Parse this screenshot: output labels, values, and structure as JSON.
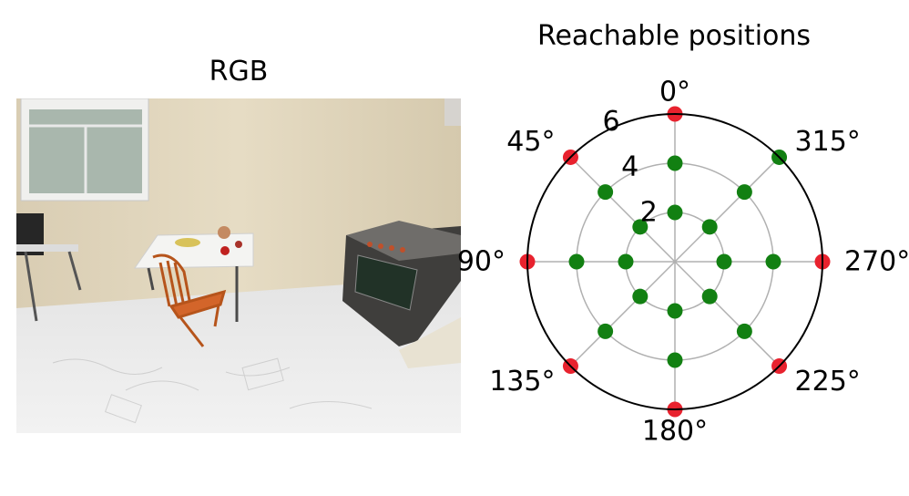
{
  "panels": {
    "rgb_title": "RGB",
    "polar_title": "Reachable positions"
  },
  "colors": {
    "reachable": "#128012",
    "unreachable": "#e8222e",
    "grid": "#b0b0b0",
    "frame": "#000000"
  },
  "chart_data": {
    "type": "scatter",
    "projection": "polar",
    "title": "Reachable positions",
    "theta_zero_location": "top",
    "theta_direction": "counterclockwise",
    "rlim": [
      0,
      6
    ],
    "grid": true,
    "theta_tick_labels": [
      "0°",
      "45°",
      "90°",
      "135°",
      "180°",
      "225°",
      "270°",
      "315°"
    ],
    "r_tick_labels": [
      "2",
      "4",
      "6"
    ],
    "theta_ticks_deg": [
      0,
      45,
      90,
      135,
      180,
      225,
      270,
      315
    ],
    "r_ticks": [
      2,
      4,
      6
    ],
    "angles_deg": [
      0,
      45,
      90,
      135,
      180,
      225,
      270,
      315
    ],
    "series": [
      {
        "color": "reachable",
        "points_by_radius": {
          "2": [
            0,
            45,
            90,
            135,
            180,
            225,
            270,
            315
          ],
          "4": [
            0,
            45,
            90,
            135,
            180,
            225,
            270,
            315
          ],
          "6": [
            315
          ]
        }
      },
      {
        "color": "unreachable",
        "points_by_radius": {
          "6": [
            0,
            45,
            90,
            135,
            180,
            225,
            270
          ]
        }
      }
    ]
  }
}
